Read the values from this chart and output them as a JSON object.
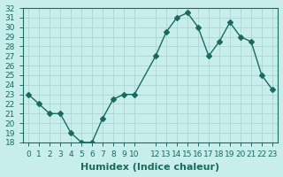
{
  "xlabel": "Humidex (Indice chaleur)",
  "ylabel": "",
  "x": [
    0,
    1,
    2,
    3,
    4,
    5,
    6,
    7,
    8,
    9,
    10,
    12,
    13,
    14,
    15,
    16,
    17,
    18,
    19,
    20,
    21,
    22,
    23
  ],
  "y": [
    23,
    22,
    21,
    21,
    19,
    18,
    18,
    20.5,
    22.5,
    23,
    23,
    27,
    29.5,
    31,
    31.5,
    30,
    27,
    28.5,
    30.5,
    29,
    28.5,
    25,
    23.5
  ],
  "ylim": [
    18,
    32
  ],
  "yticks": [
    18,
    19,
    20,
    21,
    22,
    23,
    24,
    25,
    26,
    27,
    28,
    29,
    30,
    31,
    32
  ],
  "xticks": [
    0,
    1,
    2,
    3,
    4,
    5,
    6,
    7,
    8,
    9,
    10,
    12,
    13,
    14,
    15,
    16,
    17,
    18,
    19,
    20,
    21,
    22,
    23
  ],
  "xtick_labels": [
    "0",
    "1",
    "2",
    "3",
    "4",
    "5",
    "6",
    "7",
    "8",
    "9",
    "10",
    "12",
    "13",
    "14",
    "15",
    "16",
    "17",
    "18",
    "19",
    "20",
    "21",
    "22",
    "23"
  ],
  "line_color": "#1a6b5e",
  "marker": "D",
  "marker_size": 3,
  "bg_color": "#c8eeeb",
  "grid_color": "#b0d8d4",
  "axis_color": "#1a6b5e",
  "label_fontsize": 8,
  "tick_fontsize": 6.5
}
